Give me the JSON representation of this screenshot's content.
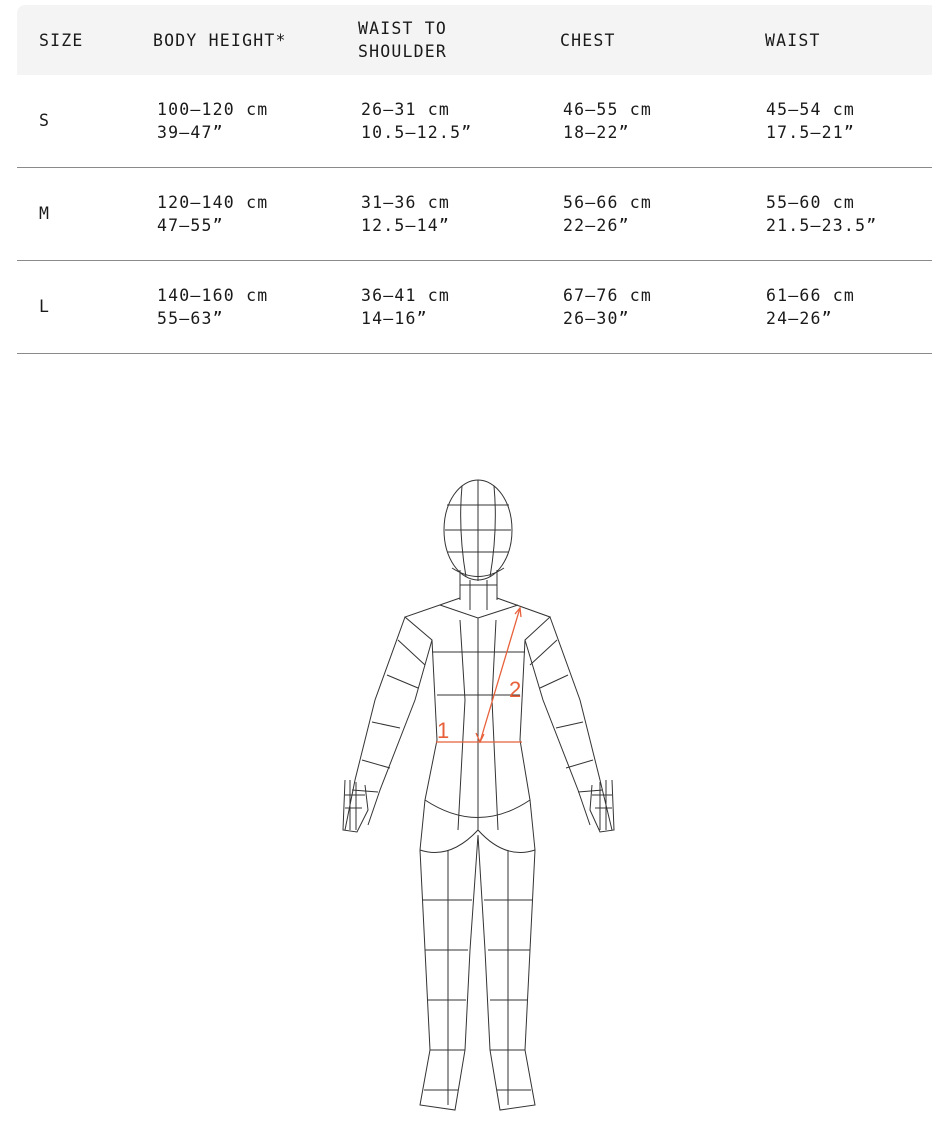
{
  "table": {
    "headers": [
      "SIZE",
      "BODY HEIGHT*",
      "WAIST TO\nSHOULDER",
      "CHEST",
      "WAIST"
    ],
    "rows": [
      {
        "size": "S",
        "body_height": "100–120 cm\n39–47”",
        "waist_to_shoulder": "26–31 cm\n10.5–12.5”",
        "chest": "46–55 cm\n18–22”",
        "waist": "45–54 cm\n17.5–21”"
      },
      {
        "size": "M",
        "body_height": "120–140 cm\n47–55”",
        "waist_to_shoulder": "31–36 cm\n12.5–14”",
        "chest": "56–66 cm\n22–26”",
        "waist": "55–60 cm\n21.5–23.5”"
      },
      {
        "size": "L",
        "body_height": "140–160 cm\n55–63”",
        "waist_to_shoulder": "36–41 cm\n14–16”",
        "chest": "67–76 cm\n26–30”",
        "waist": "61–66 cm\n24–26”"
      }
    ]
  },
  "figure": {
    "measure_labels": [
      "1",
      "2"
    ],
    "accent_color": "#e8603a",
    "line_color": "#333333"
  }
}
